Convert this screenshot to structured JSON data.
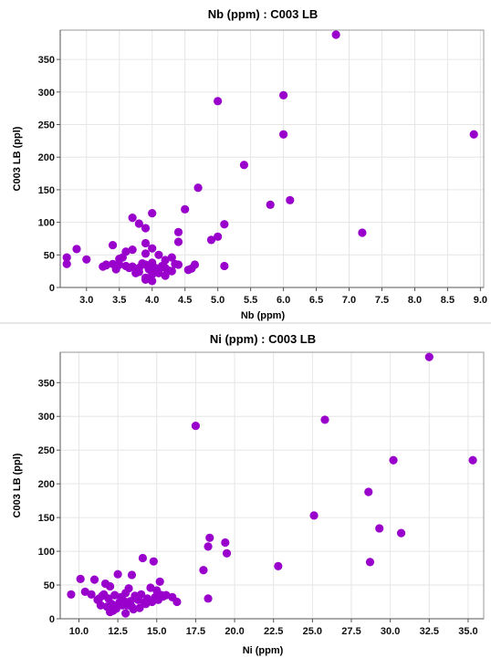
{
  "chart_data": [
    {
      "type": "scatter",
      "title": "Nb (ppm) : C003 LB",
      "xlabel": "Nb (ppm)",
      "ylabel": "C003 LB (ppl)",
      "xlim": [
        2.6,
        9.05
      ],
      "ylim": [
        0,
        395
      ],
      "xticks": [
        "3.0",
        "3.5",
        "4.0",
        "4.5",
        "5.0",
        "5.5",
        "6.0",
        "6.5",
        "7.0",
        "7.5",
        "8.0",
        "8.5",
        "9.0"
      ],
      "yticks": [
        "0",
        "50",
        "100",
        "150",
        "200",
        "250",
        "300",
        "350"
      ],
      "grid": true,
      "marker_color": "#9900cc",
      "series": [
        {
          "x": [
            6.8,
            6.0,
            5.0,
            6.0,
            8.9,
            5.4,
            4.7,
            6.1,
            5.8,
            4.0,
            4.4,
            3.7,
            5.1,
            3.8,
            3.9,
            7.2,
            4.4,
            5.0,
            3.6,
            3.9,
            4.5,
            4.9,
            2.85,
            3.4,
            4.0,
            3.7,
            3.9,
            4.1,
            3.55,
            4.3,
            2.7,
            3.0,
            3.5,
            4.2,
            2.7,
            4.65,
            4.05,
            3.3,
            3.4,
            3.5,
            3.6,
            3.7,
            3.8,
            3.9,
            4.0,
            4.1,
            4.2,
            4.3,
            3.95,
            4.15,
            4.35,
            3.85,
            3.65,
            3.45,
            3.25,
            4.05,
            4.25,
            3.75,
            5.1,
            4.55,
            3.9,
            4.0,
            4.0,
            3.9,
            3.8,
            4.2,
            4.1,
            4.4,
            4.6,
            3.3
          ],
          "y": [
            388,
            295,
            286,
            235,
            235,
            188,
            153,
            134,
            127,
            114,
            85,
            107,
            97,
            98,
            91,
            84,
            70,
            78,
            55,
            68,
            120,
            73,
            59,
            65,
            60,
            58,
            52,
            50,
            46,
            46,
            46,
            43,
            44,
            42,
            36,
            35,
            30,
            34,
            36,
            35,
            33,
            32,
            30,
            35,
            38,
            28,
            30,
            25,
            28,
            33,
            36,
            37,
            30,
            28,
            32,
            24,
            26,
            22,
            33,
            27,
            15,
            10,
            20,
            12,
            24,
            18,
            22,
            35,
            29,
            35
          ]
        }
      ]
    },
    {
      "type": "scatter",
      "title": "Ni (ppm) : C003 LB",
      "xlabel": "Ni (ppm)",
      "ylabel": "C003 LB (ppl)",
      "xlim": [
        8.8,
        36.0
      ],
      "ylim": [
        0,
        395
      ],
      "xticks": [
        "10.0",
        "12.5",
        "15.0",
        "17.5",
        "20.0",
        "22.5",
        "25.0",
        "27.5",
        "30.0",
        "32.5",
        "35.0"
      ],
      "yticks": [
        "0",
        "50",
        "100",
        "150",
        "200",
        "250",
        "300",
        "350"
      ],
      "grid": true,
      "marker_color": "#9900cc",
      "series": [
        {
          "x": [
            32.5,
            25.8,
            17.5,
            30.2,
            35.3,
            28.6,
            29.3,
            25.1,
            30.7,
            18.4,
            19.4,
            19.5,
            18.3,
            18.0,
            22.8,
            28.7,
            14.1,
            14.8,
            15.2,
            12.5,
            13.4,
            11.0,
            11.7,
            10.1,
            12.0,
            14.6,
            15.0,
            9.5,
            10.4,
            13.2,
            13.0,
            11.6,
            18.3,
            16.3,
            12.3,
            12.7,
            13.6,
            14.0,
            14.4,
            15.4,
            11.2,
            11.9,
            12.9,
            13.8,
            14.2,
            14.9,
            15.6,
            11.4,
            12.1,
            12.6,
            13.3,
            13.7,
            14.3,
            15.1,
            11.8,
            12.4,
            13.1,
            13.9,
            14.7,
            12.2,
            13.5,
            10.8,
            11.3,
            12.8,
            14.5,
            11.5,
            12.0,
            15.3,
            16.0,
            13.0,
            13.4
          ],
          "y": [
            388,
            295,
            286,
            235,
            235,
            188,
            134,
            153,
            127,
            120,
            113,
            97,
            107,
            72,
            78,
            84,
            90,
            85,
            55,
            66,
            65,
            58,
            52,
            59,
            48,
            46,
            42,
            36,
            40,
            45,
            38,
            36,
            30,
            25,
            35,
            32,
            34,
            36,
            30,
            33,
            28,
            30,
            26,
            28,
            24,
            32,
            35,
            20,
            22,
            24,
            26,
            30,
            22,
            28,
            18,
            15,
            20,
            16,
            25,
            12,
            14,
            36,
            30,
            20,
            27,
            34,
            10,
            35,
            32,
            8,
            18
          ]
        }
      ]
    }
  ]
}
